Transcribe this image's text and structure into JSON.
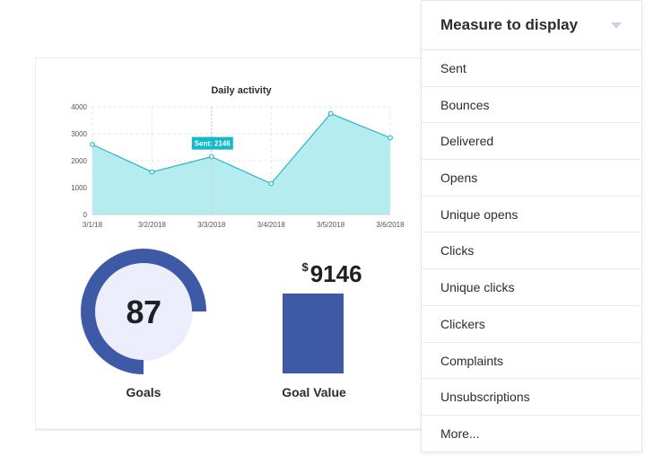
{
  "chart_data": {
    "type": "area",
    "title": "Daily activity",
    "x": [
      "3/1/18",
      "3/2/2018",
      "3/3/2018",
      "3/4/2018",
      "3/5/2018",
      "3/6/2018"
    ],
    "series": [
      {
        "values": [
          2600,
          1580,
          2146,
          1150,
          3750,
          2850
        ]
      }
    ],
    "ylim": [
      0,
      4000
    ],
    "yticks": [
      0,
      1000,
      2000,
      3000,
      4000
    ],
    "grid": true,
    "tooltip": {
      "index": 2,
      "text": "Sent: 2146"
    },
    "colors": {
      "fill": "#b5ecef",
      "line": "#2fb4c7",
      "tooltip": "#13b9c9"
    }
  },
  "gauge": {
    "value": 87,
    "label": "Goals",
    "fraction": 0.75,
    "colors": {
      "ring": "#3e59a5",
      "inner": "#eceefb"
    }
  },
  "goal_value": {
    "currency": "$",
    "value": "9146",
    "label": "Goal Value",
    "bar_color": "#3e59a5"
  },
  "panel": {
    "title": "Measure to display",
    "items": [
      "Sent",
      "Bounces",
      "Delivered",
      "Opens",
      "Unique opens",
      "Clicks",
      "Unique clicks",
      "Clickers",
      "Complaints",
      "Unsubscriptions",
      "More..."
    ]
  }
}
